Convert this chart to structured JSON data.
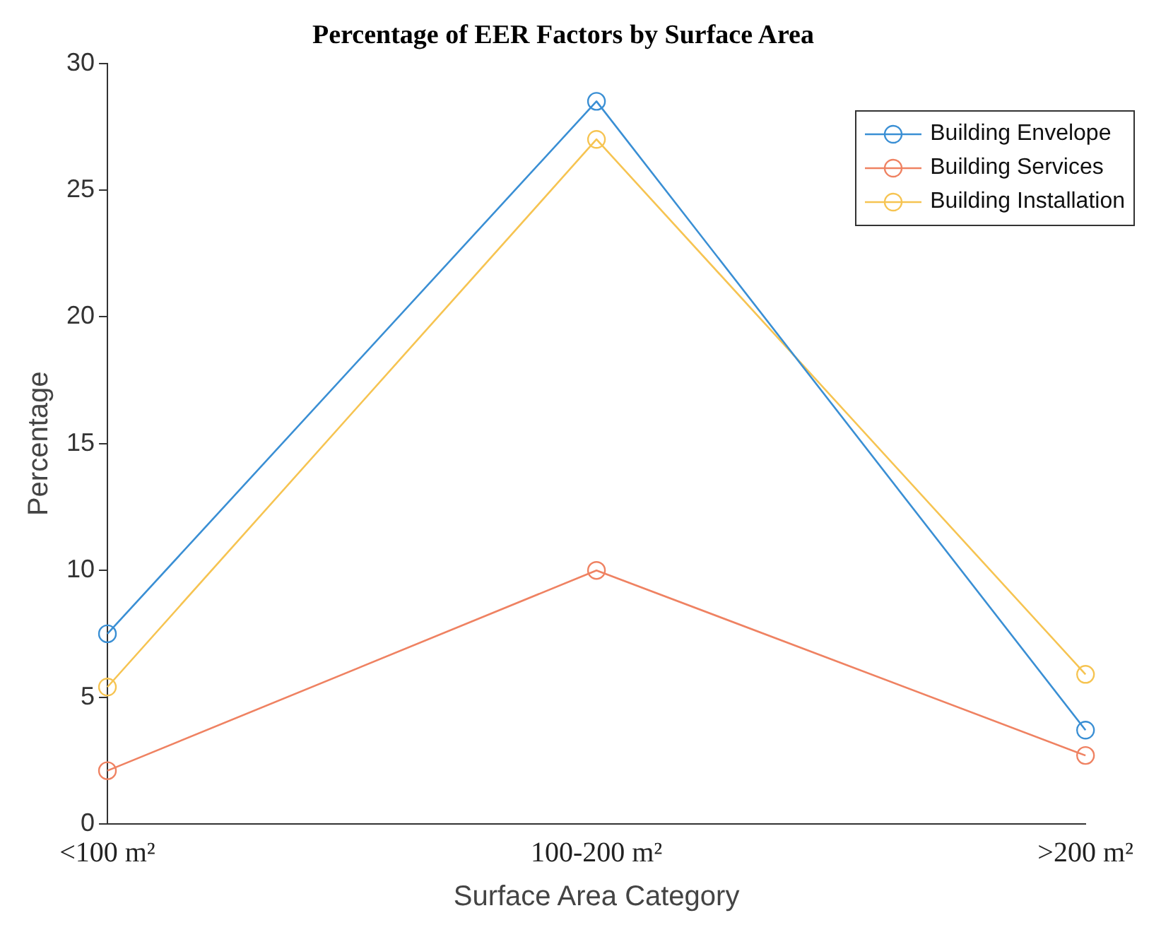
{
  "chart_data": {
    "type": "line",
    "title": "Percentage of EER Factors by Surface Area",
    "xlabel": "Surface Area Category",
    "ylabel": "Percentage",
    "categories": [
      "<100 m²",
      "100-200 m²",
      ">200 m²"
    ],
    "series": [
      {
        "name": "Building Envelope",
        "color": "#3a8fd4",
        "values": [
          7.5,
          28.5,
          3.7
        ]
      },
      {
        "name": "Building Services",
        "color": "#ef8262",
        "values": [
          2.1,
          10,
          2.7
        ]
      },
      {
        "name": "Building Installation",
        "color": "#f6c452",
        "values": [
          5.4,
          27,
          5.9
        ]
      }
    ],
    "ylim": [
      0,
      30
    ],
    "yticks": [
      0,
      5,
      10,
      15,
      20,
      25,
      30
    ],
    "grid": false,
    "legend": "top right",
    "marker": "circle",
    "line_style": "solid"
  }
}
